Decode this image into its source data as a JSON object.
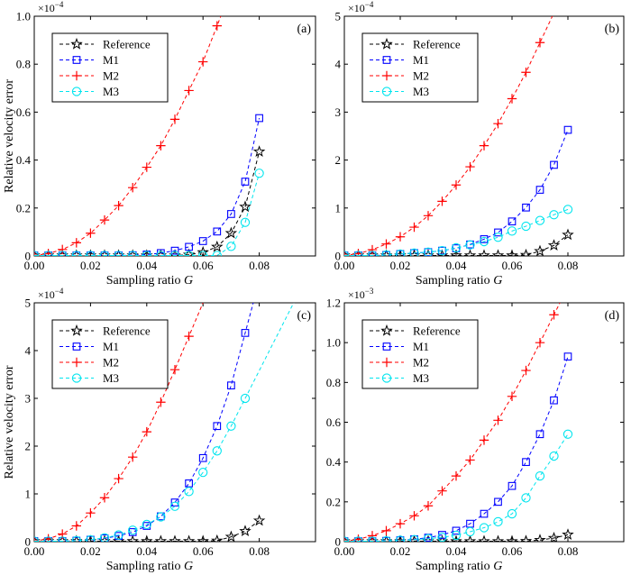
{
  "chart_data": [
    {
      "type": "line",
      "panel_label": "(a)",
      "x": [
        0,
        0.005,
        0.01,
        0.015,
        0.02,
        0.025,
        0.03,
        0.035,
        0.04,
        0.045,
        0.05,
        0.055,
        0.06,
        0.065,
        0.07,
        0.075,
        0.08
      ],
      "series": [
        {
          "name": "Reference",
          "values": [
            0.002,
            0.002,
            0.002,
            0.002,
            0.002,
            0.002,
            0.002,
            0.002,
            0.002,
            0.002,
            0.002,
            0.005,
            0.015,
            0.038,
            0.095,
            0.205,
            0.435
          ]
        },
        {
          "name": "M1",
          "values": [
            0.002,
            0.002,
            0.002,
            0.002,
            0.002,
            0.002,
            0.002,
            0.003,
            0.006,
            0.012,
            0.022,
            0.038,
            0.062,
            0.102,
            0.175,
            0.31,
            0.575
          ]
        },
        {
          "name": "M2",
          "values": [
            0.002,
            0.01,
            0.027,
            0.055,
            0.095,
            0.15,
            0.21,
            0.285,
            0.37,
            0.46,
            0.57,
            0.69,
            0.81,
            0.96,
            null,
            null,
            null
          ]
        },
        {
          "name": "M3",
          "values": [
            0.002,
            0.002,
            0.002,
            0.002,
            0.002,
            0.002,
            0.002,
            0.002,
            0.002,
            0.002,
            0.002,
            0.002,
            0.002,
            0.002,
            0.04,
            0.14,
            0.345
          ]
        }
      ],
      "xlim": [
        0,
        0.1
      ],
      "ylim": [
        0,
        1.0
      ],
      "xticks": [
        "0.00",
        "0.02",
        "0.04",
        "0.06",
        "0.08"
      ],
      "yticks": [
        "0",
        "0.2",
        "0.4",
        "0.6",
        "0.8",
        "1.0"
      ],
      "y_exponent": "×10",
      "y_exponent_power": "−4",
      "xlabel": "Sampling ratio G",
      "ylabel": "Relative velocity error",
      "legend": "top-left"
    },
    {
      "type": "line",
      "panel_label": "(b)",
      "x": [
        0,
        0.005,
        0.01,
        0.015,
        0.02,
        0.025,
        0.03,
        0.035,
        0.04,
        0.045,
        0.05,
        0.055,
        0.06,
        0.065,
        0.07,
        0.075,
        0.08
      ],
      "series": [
        {
          "name": "Reference",
          "values": [
            0.01,
            0.01,
            0.01,
            0.01,
            0.01,
            0.01,
            0.01,
            0.01,
            0.01,
            0.01,
            0.01,
            0.01,
            0.01,
            0.02,
            0.1,
            0.22,
            0.44
          ]
        },
        {
          "name": "M1",
          "values": [
            0.01,
            0.01,
            0.01,
            0.02,
            0.04,
            0.06,
            0.08,
            0.11,
            0.16,
            0.24,
            0.35,
            0.49,
            0.72,
            1.01,
            1.38,
            1.9,
            2.63
          ]
        },
        {
          "name": "M2",
          "values": [
            0.01,
            0.05,
            0.13,
            0.25,
            0.4,
            0.6,
            0.84,
            1.14,
            1.48,
            1.86,
            2.3,
            2.76,
            3.28,
            3.83,
            4.45,
            null,
            null
          ]
        },
        {
          "name": "M3",
          "values": [
            0.01,
            0.01,
            0.01,
            0.02,
            0.04,
            0.06,
            0.08,
            0.11,
            0.17,
            0.23,
            0.3,
            0.39,
            0.52,
            0.62,
            0.74,
            0.86,
            0.97
          ]
        }
      ],
      "xlim": [
        0,
        0.1
      ],
      "ylim": [
        0,
        5
      ],
      "xticks": [
        "0.00",
        "0.02",
        "0.04",
        "0.06",
        "0.08"
      ],
      "yticks": [
        "0",
        "1",
        "2",
        "3",
        "4",
        "5"
      ],
      "y_exponent": "×10",
      "y_exponent_power": "−4",
      "xlabel": "Sampling ratio G",
      "ylabel": "",
      "legend": "top-left"
    },
    {
      "type": "line",
      "panel_label": "(c)",
      "x": [
        0,
        0.005,
        0.01,
        0.015,
        0.02,
        0.025,
        0.03,
        0.035,
        0.04,
        0.045,
        0.05,
        0.055,
        0.06,
        0.065,
        0.07,
        0.075,
        0.08
      ],
      "series": [
        {
          "name": "Reference",
          "values": [
            0.01,
            0.01,
            0.01,
            0.01,
            0.01,
            0.01,
            0.01,
            0.01,
            0.01,
            0.01,
            0.01,
            0.01,
            0.01,
            0.02,
            0.1,
            0.22,
            0.44
          ]
        },
        {
          "name": "M1",
          "values": [
            0.01,
            0.01,
            0.01,
            0.02,
            0.04,
            0.07,
            0.12,
            0.2,
            0.33,
            0.53,
            0.82,
            1.22,
            1.75,
            2.42,
            3.27,
            4.37,
            null
          ]
        },
        {
          "name": "M2",
          "values": [
            0.01,
            0.06,
            0.16,
            0.33,
            0.6,
            0.92,
            1.32,
            1.77,
            2.3,
            2.92,
            3.6,
            4.3,
            null,
            null,
            null,
            null,
            null
          ]
        },
        {
          "name": "M3",
          "values": [
            0.01,
            0.01,
            0.01,
            0.02,
            0.04,
            0.08,
            0.14,
            0.24,
            0.36,
            0.52,
            0.74,
            1.05,
            1.45,
            1.9,
            2.42,
            3.0,
            null
          ]
        }
      ],
      "xlim": [
        0,
        0.1
      ],
      "ylim": [
        0,
        5
      ],
      "xticks": [
        "0.00",
        "0.02",
        "0.04",
        "0.06",
        "0.08"
      ],
      "yticks": [
        "0",
        "1",
        "2",
        "3",
        "4",
        "5"
      ],
      "y_exponent": "×10",
      "y_exponent_power": "−4",
      "xlabel": "Sampling ratio G",
      "ylabel": "Relative velocity error",
      "legend": "top-left"
    },
    {
      "type": "line",
      "panel_label": "(d)",
      "x": [
        0,
        0.005,
        0.01,
        0.015,
        0.02,
        0.025,
        0.03,
        0.035,
        0.04,
        0.045,
        0.05,
        0.055,
        0.06,
        0.065,
        0.07,
        0.075,
        0.08
      ],
      "series": [
        {
          "name": "Reference",
          "values": [
            0.002,
            0.002,
            0.002,
            0.002,
            0.002,
            0.002,
            0.002,
            0.002,
            0.002,
            0.002,
            0.002,
            0.002,
            0.002,
            0.003,
            0.008,
            0.018,
            0.035
          ]
        },
        {
          "name": "M1",
          "values": [
            0.002,
            0.002,
            0.002,
            0.004,
            0.007,
            0.012,
            0.02,
            0.034,
            0.055,
            0.09,
            0.14,
            0.2,
            0.28,
            0.4,
            0.54,
            0.71,
            0.93
          ]
        },
        {
          "name": "M2",
          "values": [
            0.002,
            0.012,
            0.03,
            0.055,
            0.09,
            0.13,
            0.18,
            0.255,
            0.33,
            0.41,
            0.51,
            0.61,
            0.73,
            0.86,
            1.0,
            1.14,
            null
          ]
        },
        {
          "name": "M3",
          "values": [
            0.002,
            0.002,
            0.002,
            0.004,
            0.007,
            0.01,
            0.015,
            0.022,
            0.032,
            0.05,
            0.07,
            0.1,
            0.14,
            0.22,
            0.33,
            0.43,
            0.54
          ]
        }
      ],
      "xlim": [
        0,
        0.1
      ],
      "ylim": [
        0,
        1.2
      ],
      "xticks": [
        "0.00",
        "0.02",
        "0.04",
        "0.06",
        "0.08"
      ],
      "yticks": [
        "0",
        "0.2",
        "0.4",
        "0.6",
        "0.8",
        "1.0",
        "1.2"
      ],
      "y_exponent": "×10",
      "y_exponent_power": "−3",
      "xlabel": "Sampling ratio G",
      "ylabel": "",
      "legend": "top-left"
    }
  ],
  "series_style": {
    "Reference": {
      "color": "#000000",
      "marker": "star"
    },
    "M1": {
      "color": "#0000ff",
      "marker": "square"
    },
    "M2": {
      "color": "#ff0000",
      "marker": "plus"
    },
    "M3": {
      "color": "#00e5ee",
      "marker": "circle"
    }
  }
}
